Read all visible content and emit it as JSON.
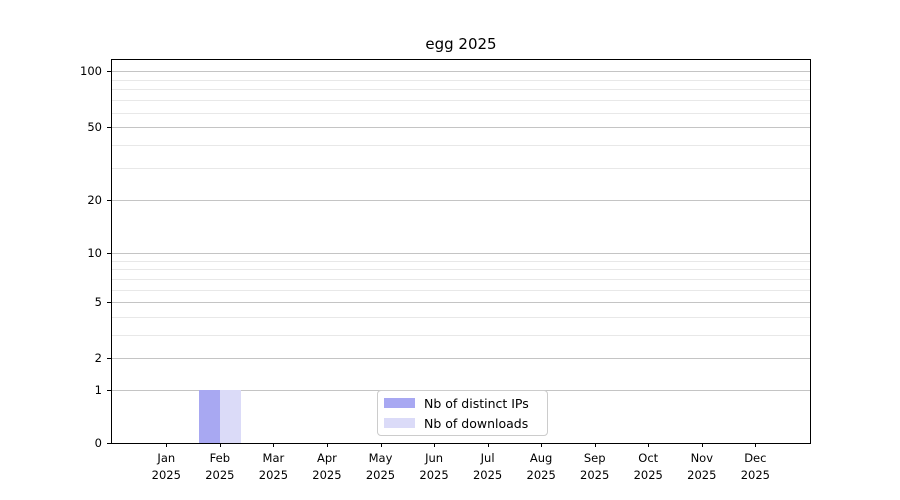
{
  "chart_data": {
    "type": "bar",
    "title": "egg 2025",
    "categories": [
      "Jan",
      "Feb",
      "Mar",
      "Apr",
      "May",
      "Jun",
      "Jul",
      "Aug",
      "Sep",
      "Oct",
      "Nov",
      "Dec"
    ],
    "x_tick_second_line": "2025",
    "series": [
      {
        "name": "Nb of distinct IPs",
        "color": "#a8a8f2",
        "values": [
          0,
          1,
          0,
          0,
          0,
          0,
          0,
          0,
          0,
          0,
          0,
          0
        ]
      },
      {
        "name": "Nb of downloads",
        "color": "#dbdbf8",
        "values": [
          0,
          1,
          0,
          0,
          0,
          0,
          0,
          0,
          0,
          0,
          0,
          0
        ]
      }
    ],
    "y_axis": {
      "major_ticks": [
        0,
        1,
        2,
        5,
        10,
        20,
        50,
        100
      ],
      "minor_gridlines": [
        3,
        4,
        6,
        7,
        8,
        9,
        30,
        40,
        60,
        70,
        80,
        90
      ],
      "scale": "log10(value + 1.1) with 0 at baseline",
      "range": [
        0,
        114
      ]
    },
    "grid": {
      "horizontal": true,
      "major_color": "#c4c4c4",
      "minor_color": "#e8e8e8"
    },
    "legend": {
      "position": "lower center"
    },
    "spine_color": "#000000"
  }
}
